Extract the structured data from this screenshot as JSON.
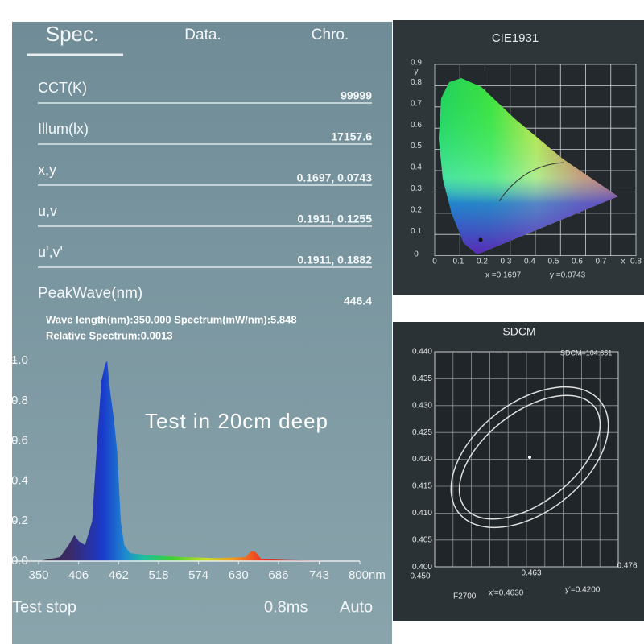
{
  "tabs": [
    "Spec.",
    "Data.",
    "Chro."
  ],
  "measurements": [
    {
      "label": "CCT(K)",
      "value": "99999"
    },
    {
      "label": "Illum(lx)",
      "value": "17157.6"
    },
    {
      "label": "x,y",
      "value": "0.1697, 0.0743"
    },
    {
      "label": "u,v",
      "value": "0.1911, 0.1255"
    },
    {
      "label": "u',v'",
      "value": "0.1911, 0.1882"
    },
    {
      "label": "PeakWave(nm)",
      "value": "446.4"
    }
  ],
  "info": [
    "Wave length(nm):350.000  Spectrum(mW/nm):5.848",
    "Relative Spectrum:0.0013"
  ],
  "spectrum": {
    "x": [
      350,
      380,
      392,
      400,
      406,
      415,
      425,
      432,
      438,
      443,
      446,
      450,
      455,
      460,
      465,
      470,
      478,
      500,
      550,
      600,
      640,
      648,
      654,
      662,
      700,
      800
    ],
    "values": [
      0,
      0.02,
      0.08,
      0.13,
      0.1,
      0.08,
      0.2,
      0.6,
      0.9,
      0.98,
      1.0,
      0.85,
      0.72,
      0.55,
      0.2,
      0.08,
      0.04,
      0.03,
      0.02,
      0.015,
      0.02,
      0.05,
      0.045,
      0.01,
      0.005,
      0
    ],
    "xlim": [
      350,
      800
    ],
    "ylim": [
      0,
      1
    ],
    "xticks": [
      350,
      406,
      462,
      518,
      574,
      630,
      686,
      743,
      {
        "value": 800,
        "label": "800nm"
      }
    ],
    "yticks": [
      {
        "value": 1,
        "label": "1.0"
      },
      {
        "value": 0.8,
        "label": "0.8"
      },
      {
        "value": 0.6,
        "label": "0.6"
      },
      {
        "value": 0.4,
        "label": "0.4"
      },
      {
        "value": 0.2,
        "label": "0.2"
      },
      {
        "value": 0,
        "label": "0.0"
      }
    ]
  },
  "annotation": "Test in 20cm deep",
  "footer": {
    "status": "Test stop",
    "time": "0.8ms",
    "mode": "Auto"
  },
  "cie": {
    "title": "CIE1931",
    "y_label": "y",
    "yticks": [
      "0.9",
      "0.8",
      "0.7",
      "0.6",
      "0.5",
      "0.4",
      "0.3",
      "0.2",
      "0.1",
      "0"
    ],
    "x_label": "x",
    "xticks": [
      "0",
      "0.1",
      "0.2",
      "0.3",
      "0.4",
      "0.5",
      "0.6",
      "0.7",
      "0.8"
    ],
    "readout": [
      "x =0.1697",
      "y =0.0743"
    ]
  },
  "sdcm": {
    "title": "SDCM",
    "readout": "SDCM=104.651",
    "yticks": [
      "0.440",
      "0.435",
      "0.430",
      "0.425",
      "0.420",
      "0.415",
      "0.410",
      "0.405",
      "0.400"
    ],
    "xticks": [
      "0.450",
      "0.463",
      "0.476"
    ],
    "source": "F2700",
    "readout_xy": [
      "x'=0.4630",
      "y'=0.4200"
    ]
  }
}
